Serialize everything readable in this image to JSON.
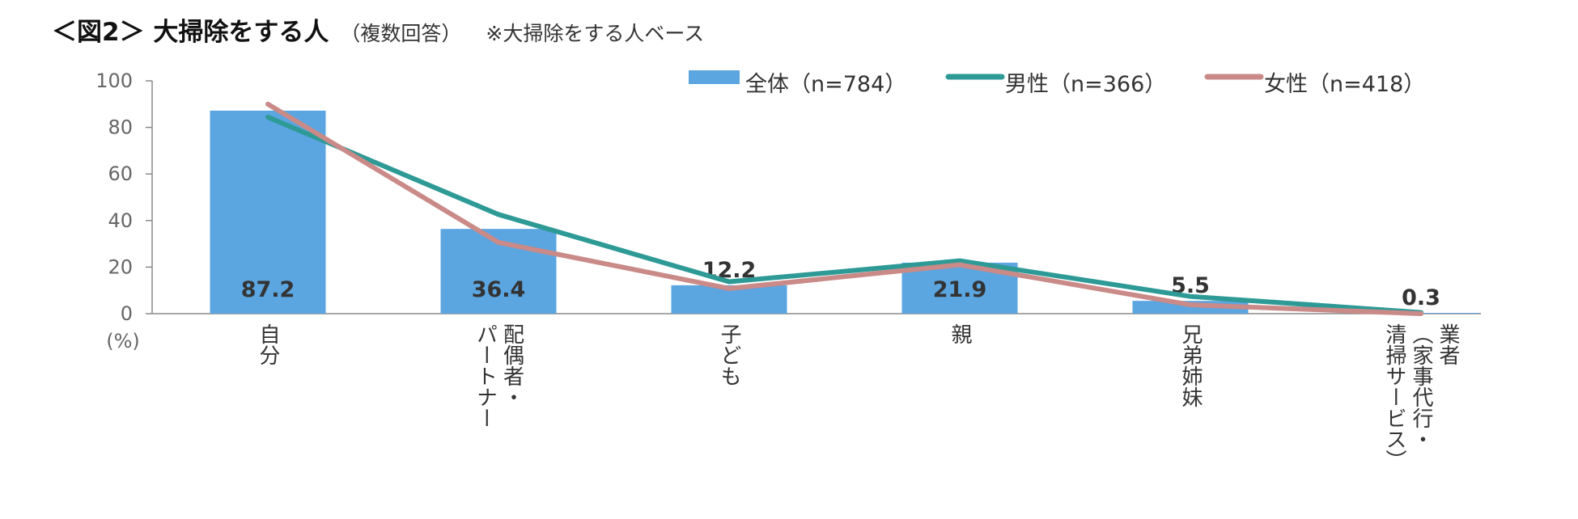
{
  "header": {
    "title": "＜図2＞ 大掃除をする人",
    "subtitle": "（複数回答）",
    "note": "※大掃除をする人ベース"
  },
  "chart_data": {
    "type": "bar",
    "categories": [
      "自分",
      "配偶者・パートナー",
      "子ども",
      "親",
      "兄弟姉妹",
      "業者（家事代行・清掃サービス）"
    ],
    "category_columns": [
      [
        "自分"
      ],
      [
        "配偶者・",
        "パートナー"
      ],
      [
        "子ども"
      ],
      [
        "親"
      ],
      [
        "兄弟姉妹"
      ],
      [
        "業者",
        "（家事代行・",
        "清掃サービス）"
      ]
    ],
    "series": [
      {
        "name": "全体（n=784）",
        "kind": "bar",
        "color": "#5BA5E0",
        "values": [
          87.2,
          36.4,
          12.2,
          21.9,
          5.5,
          0.3
        ]
      },
      {
        "name": "男性（n=366）",
        "kind": "line",
        "color": "#2E9A96",
        "values": [
          84.4,
          42.6,
          13.7,
          22.7,
          7.4,
          0.5
        ]
      },
      {
        "name": "女性（n=418）",
        "kind": "line",
        "color": "#C98A88",
        "values": [
          90.0,
          30.6,
          10.8,
          21.0,
          3.8,
          0.0
        ]
      }
    ],
    "data_labels": [
      "87.2",
      "36.4",
      "12.2",
      "21.9",
      "5.5",
      "0.3"
    ],
    "ylim": [
      0,
      100
    ],
    "yticks": [
      "0",
      "20",
      "40",
      "60",
      "80",
      "100"
    ],
    "yunit": "(%)",
    "legend_position": "top-right",
    "grid": false
  }
}
